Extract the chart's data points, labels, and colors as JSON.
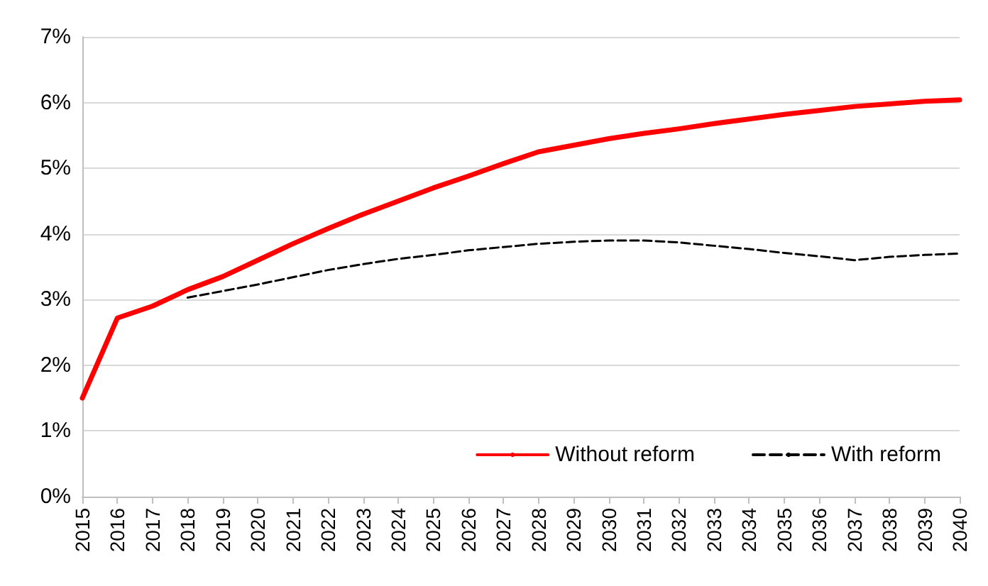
{
  "chart_data": {
    "type": "line",
    "categories": [
      "2015",
      "2016",
      "2017",
      "2018",
      "2019",
      "2020",
      "2021",
      "2022",
      "2023",
      "2024",
      "2025",
      "2026",
      "2027",
      "2028",
      "2029",
      "2030",
      "2031",
      "2032",
      "2033",
      "2034",
      "2035",
      "2036",
      "2037",
      "2038",
      "2039",
      "2040"
    ],
    "series": [
      {
        "name": "Without reform",
        "color": "#ff0000",
        "line_style": "solid",
        "values": [
          1.5,
          2.72,
          2.9,
          3.15,
          3.35,
          3.6,
          3.85,
          4.08,
          4.3,
          4.5,
          4.7,
          4.88,
          5.07,
          5.25,
          5.35,
          5.45,
          5.53,
          5.6,
          5.68,
          5.75,
          5.82,
          5.88,
          5.94,
          5.98,
          6.02,
          6.04
        ]
      },
      {
        "name": "With reform",
        "color": "#000000",
        "line_style": "dashed",
        "values": [
          null,
          null,
          null,
          3.03,
          3.13,
          3.23,
          3.34,
          3.45,
          3.54,
          3.62,
          3.68,
          3.75,
          3.8,
          3.85,
          3.88,
          3.9,
          3.9,
          3.87,
          3.82,
          3.77,
          3.71,
          3.66,
          3.6,
          3.65,
          3.68,
          3.7
        ]
      }
    ],
    "ylim": [
      0,
      7
    ],
    "yticks": [
      {
        "value": 0,
        "label": "0%"
      },
      {
        "value": 1,
        "label": "1%"
      },
      {
        "value": 2,
        "label": "2%"
      },
      {
        "value": 3,
        "label": "3%"
      },
      {
        "value": 4,
        "label": "4%"
      },
      {
        "value": 5,
        "label": "5%"
      },
      {
        "value": 6,
        "label": "6%"
      },
      {
        "value": 7,
        "label": "7%"
      }
    ],
    "grid": "y",
    "legend": "bottom right",
    "marker": "none"
  }
}
